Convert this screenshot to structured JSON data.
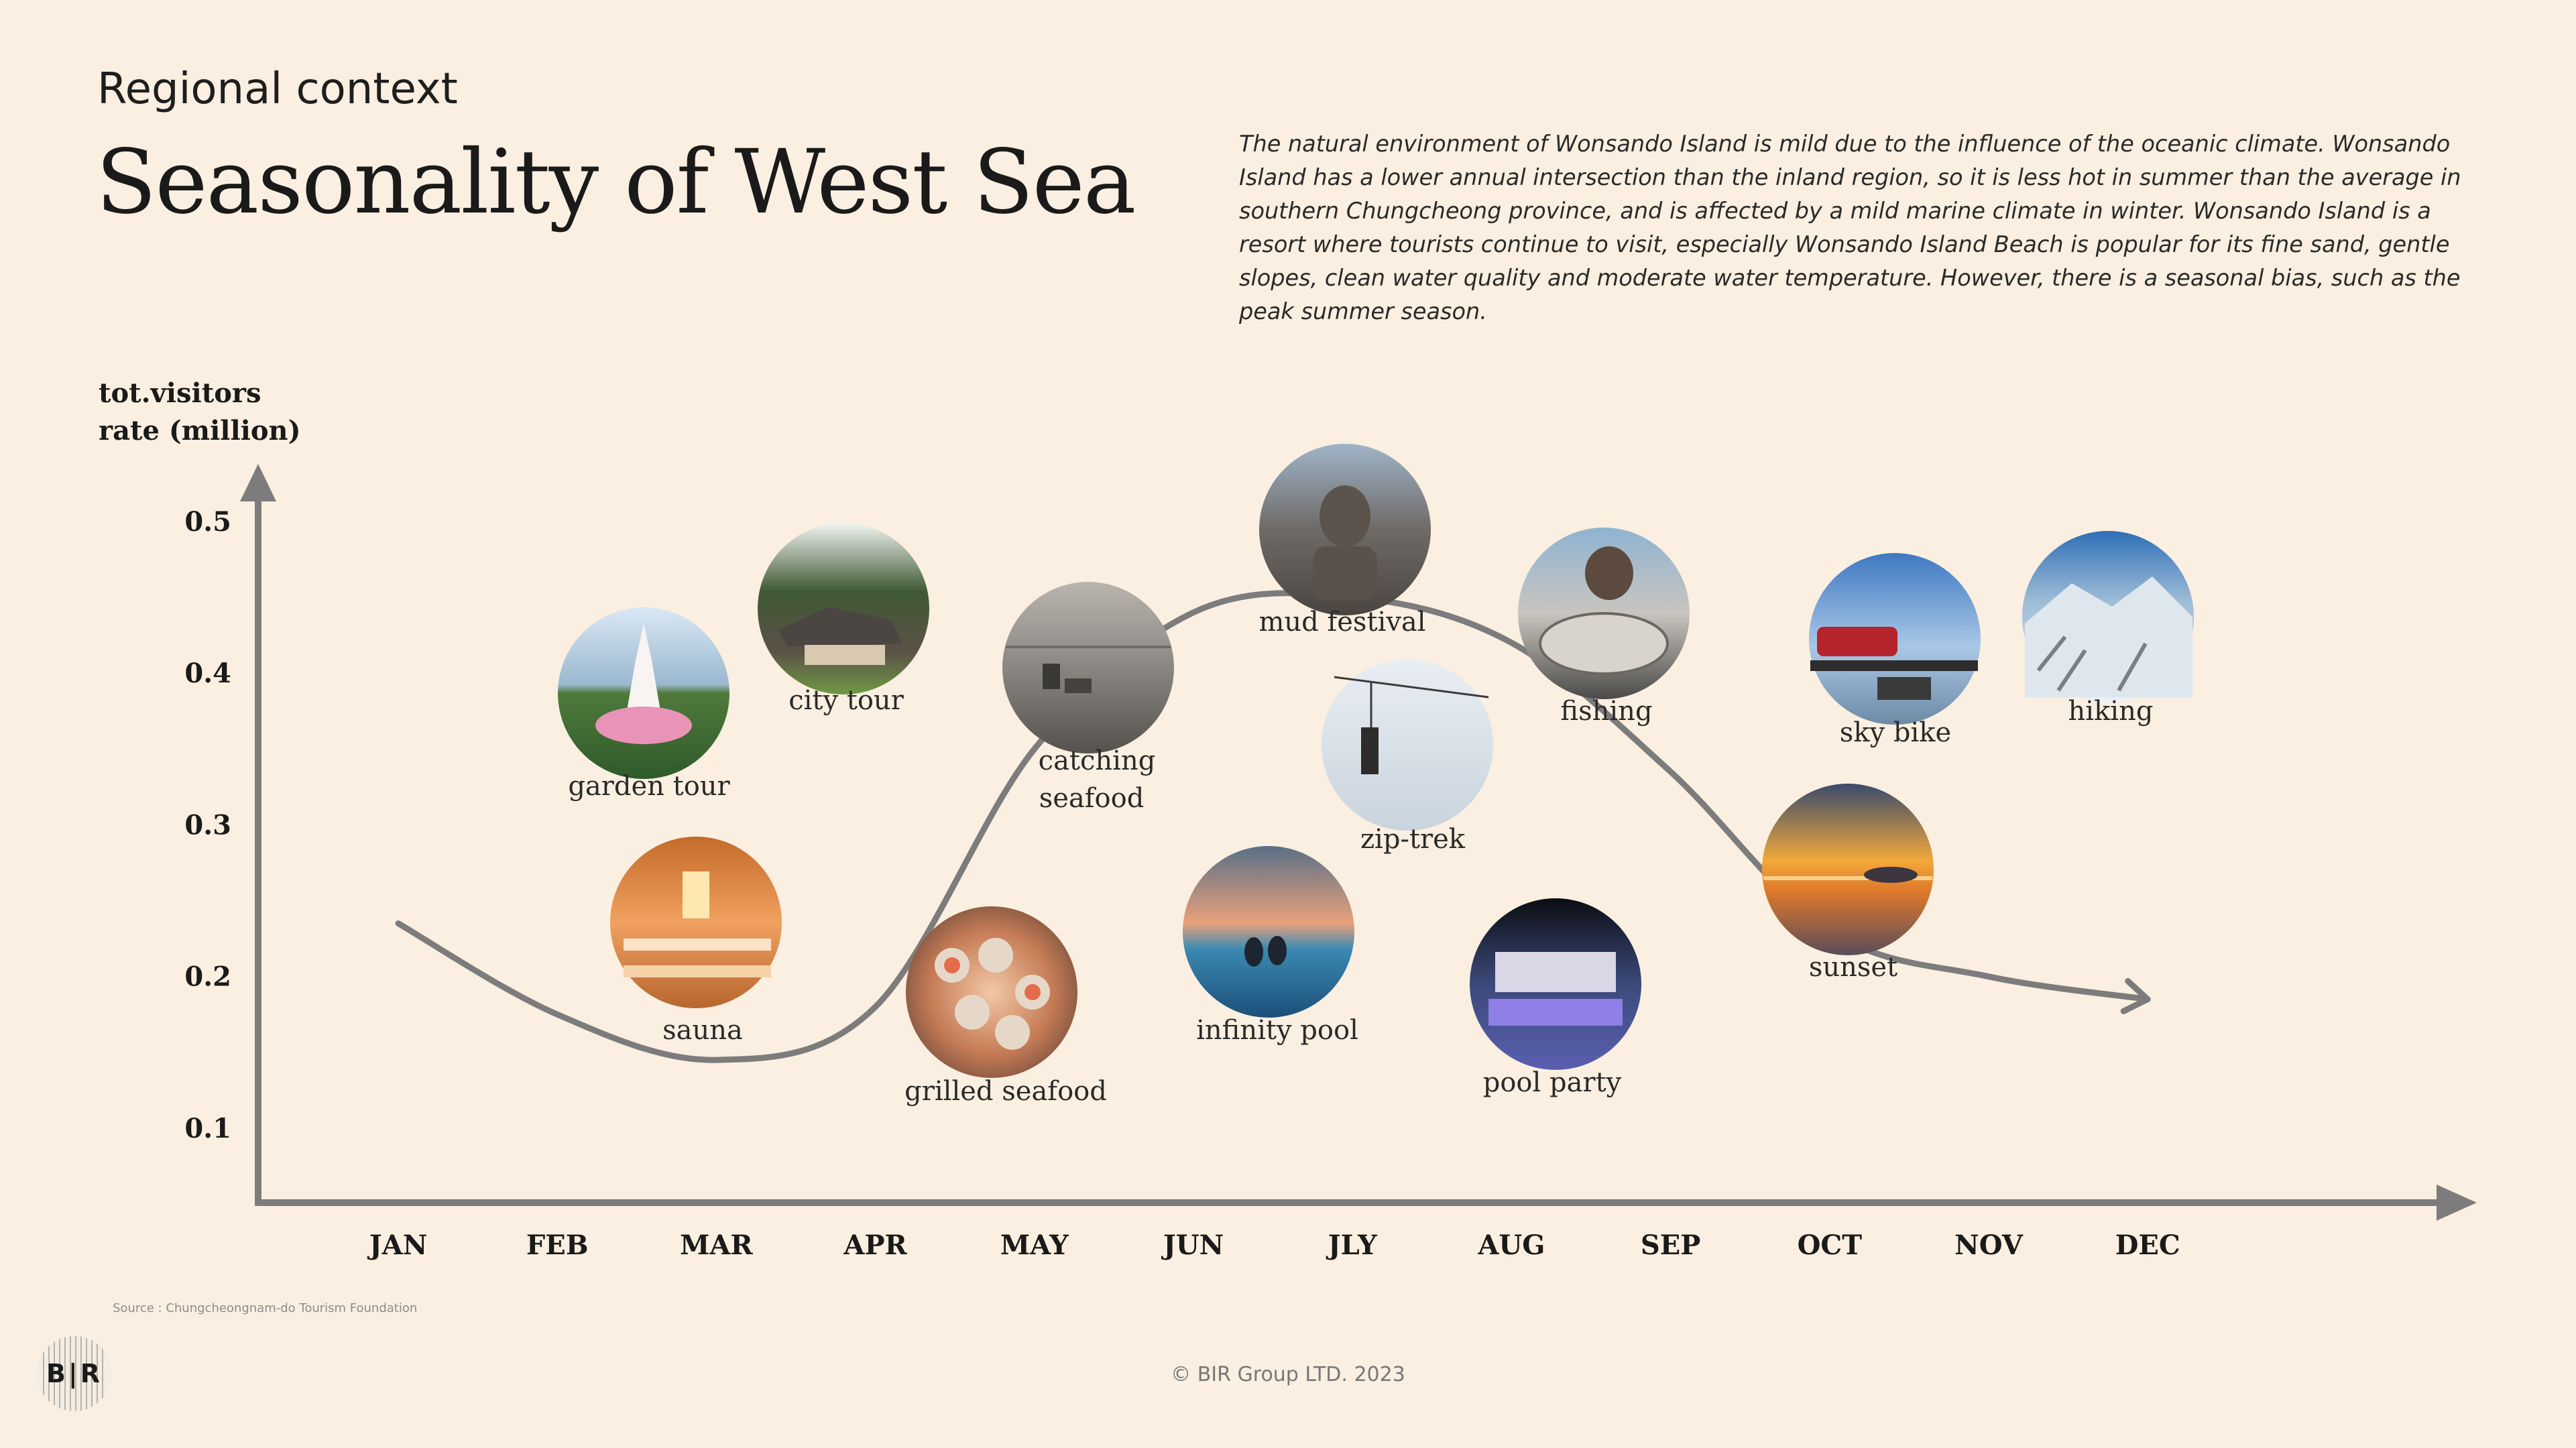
{
  "header": {
    "kicker": "Regional context",
    "title": "Seasonality of West Sea",
    "description": "The natural environment of Wonsando Island is mild due to the influence of the oceanic climate. Wonsando Island has a lower annual intersection than the inland region, so it is less hot in summer than the average in southern Chungcheong province, and is affected by a mild marine climate in winter. Wonsando Island is a resort where tourists continue to visit, especially Wonsando Island Beach is popular for its fine sand, gentle slopes, clean water quality and moderate water temperature. However, there is a seasonal bias, such as the peak summer season."
  },
  "chart_data": {
    "type": "line",
    "ylabel_line1": "tot.visitors",
    "ylabel_line2": "rate (million)",
    "categories": [
      "JAN",
      "FEB",
      "MAR",
      "APR",
      "MAY",
      "JUN",
      "JLY",
      "AUG",
      "SEP",
      "OCT",
      "NOV",
      "DEC"
    ],
    "y_ticks": [
      "0.5",
      "0.4",
      "0.3",
      "0.2",
      "0.1"
    ],
    "ylim": [
      0.05,
      0.5
    ],
    "series": [
      {
        "values": [
          0.235,
          0.175,
          0.145,
          0.18,
          0.35,
          0.44,
          0.45,
          0.42,
          0.335,
          0.23,
          0.2,
          0.185
        ]
      }
    ],
    "activities": [
      {
        "label": "garden tour",
        "month": "FEB",
        "value": 0.41,
        "photo": "pink-lotus-monument-icon"
      },
      {
        "label": "city tour",
        "month": "MAR",
        "value": 0.44,
        "photo": "traditional-house-icon"
      },
      {
        "label": "sauna",
        "month": "MAR",
        "value": 0.25,
        "photo": "wooden-sauna-icon"
      },
      {
        "label": "catching",
        "label_line2": "seafood",
        "month": "MAY",
        "value": 0.41,
        "photo": "mudflat-worker-icon"
      },
      {
        "label": "grilled seafood",
        "month": "APR",
        "value": 0.18,
        "photo": "grilled-shellfish-icon"
      },
      {
        "label": "mud festival",
        "month": "JLY",
        "value": 0.46,
        "photo": "mud-festival-icon"
      },
      {
        "label": "zip-trek",
        "month": "JLY",
        "value": 0.34,
        "photo": "zip-line-icon"
      },
      {
        "label": "infinity pool",
        "month": "JUN",
        "value": 0.22,
        "photo": "infinity-pool-icon"
      },
      {
        "label": "fishing",
        "month": "AUG",
        "value": 0.42,
        "photo": "fish-catch-icon"
      },
      {
        "label": "pool party",
        "month": "AUG",
        "value": 0.19,
        "photo": "pool-party-night-icon"
      },
      {
        "label": "sky bike",
        "month": "OCT",
        "value": 0.41,
        "photo": "rail-bike-icon"
      },
      {
        "label": "hiking",
        "month": "NOV",
        "value": 0.42,
        "photo": "snowy-mountain-icon"
      },
      {
        "label": "sunset",
        "month": "OCT",
        "value": 0.28,
        "photo": "sea-sunset-icon"
      }
    ],
    "colors": {
      "axis": "#7c7c7c",
      "line": "#7c7c7c",
      "background": "#faefe0"
    }
  },
  "footer": {
    "source": "Source : Chungcheongnam-do Tourism Foundation",
    "copyright": "© BIR Group LTD. 2023",
    "logo_text": "B|R"
  }
}
